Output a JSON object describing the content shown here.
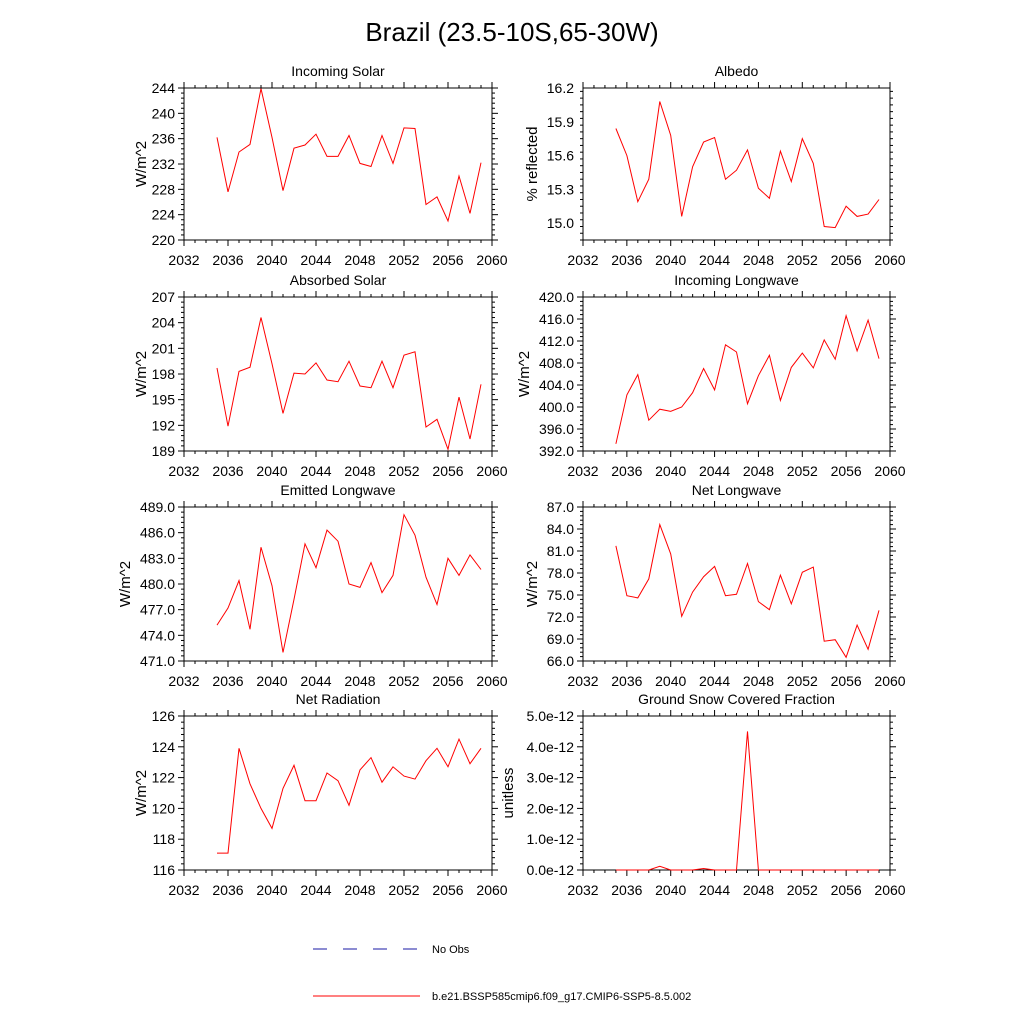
{
  "figure_title": "Brazil (23.5-10S,65-30W)",
  "legend": {
    "no_obs_label": "No Obs",
    "model_label": "b.e21.BSSP585cmip6.f09_g17.CMIP6-SSP5-8.5.002"
  },
  "colors": {
    "model": "#ff0000",
    "obs": "#1a1aa6",
    "axis": "#000000"
  },
  "chart_data": [
    {
      "type": "line",
      "title": "Incoming Solar",
      "ylabel": "W/m^2",
      "xlim": [
        2032,
        2060
      ],
      "ylim": [
        220,
        244
      ],
      "xticks": [
        "2032",
        "2036",
        "2040",
        "2044",
        "2048",
        "2052",
        "2056",
        "2060"
      ],
      "yticks": [
        "220",
        "224",
        "228",
        "232",
        "236",
        "240",
        "244"
      ],
      "series": [
        {
          "x": [
            2035,
            2036,
            2037,
            2038,
            2039,
            2040,
            2041,
            2042,
            2043,
            2044,
            2045,
            2046,
            2047,
            2048,
            2049,
            2050,
            2051,
            2052,
            2053,
            2054,
            2055,
            2056,
            2057,
            2058,
            2059
          ],
          "y": [
            236.2,
            227.6,
            233.9,
            235.1,
            243.9,
            236.2,
            227.8,
            234.5,
            235.0,
            236.7,
            233.2,
            233.2,
            236.5,
            232.1,
            231.6,
            236.5,
            232.1,
            237.7,
            237.6,
            225.6,
            226.8,
            223.0,
            230.1,
            224.2,
            232.2
          ]
        }
      ]
    },
    {
      "type": "line",
      "title": "Albedo",
      "ylabel": "% reflected",
      "xlim": [
        2032,
        2060
      ],
      "ylim": [
        14.85,
        16.2
      ],
      "xticks": [
        "2032",
        "2036",
        "2040",
        "2044",
        "2048",
        "2052",
        "2056",
        "2060"
      ],
      "yticks": [
        "15.0",
        "15.3",
        "15.6",
        "15.9",
        "16.2"
      ],
      "series": [
        {
          "x": [
            2035,
            2036,
            2037,
            2038,
            2039,
            2040,
            2041,
            2042,
            2043,
            2044,
            2045,
            2046,
            2047,
            2048,
            2049,
            2050,
            2051,
            2052,
            2053,
            2054,
            2055,
            2056,
            2057,
            2058,
            2059
          ],
          "y": [
            15.84,
            15.6,
            15.19,
            15.39,
            16.08,
            15.78,
            15.06,
            15.5,
            15.72,
            15.76,
            15.39,
            15.47,
            15.65,
            15.31,
            15.22,
            15.64,
            15.37,
            15.75,
            15.53,
            14.97,
            14.96,
            15.15,
            15.06,
            15.08,
            15.21
          ]
        }
      ]
    },
    {
      "type": "line",
      "title": "Absorbed Solar",
      "ylabel": "W/m^2",
      "xlim": [
        2032,
        2060
      ],
      "ylim": [
        189,
        207
      ],
      "xticks": [
        "2032",
        "2036",
        "2040",
        "2044",
        "2048",
        "2052",
        "2056",
        "2060"
      ],
      "yticks": [
        "189",
        "192",
        "195",
        "198",
        "201",
        "204",
        "207"
      ],
      "series": [
        {
          "x": [
            2035,
            2036,
            2037,
            2038,
            2039,
            2040,
            2041,
            2042,
            2043,
            2044,
            2045,
            2046,
            2047,
            2048,
            2049,
            2050,
            2051,
            2052,
            2053,
            2054,
            2055,
            2056,
            2057,
            2058,
            2059
          ],
          "y": [
            198.7,
            191.9,
            198.3,
            198.8,
            204.6,
            199.2,
            193.4,
            198.1,
            198.0,
            199.3,
            197.3,
            197.1,
            199.5,
            196.6,
            196.4,
            199.5,
            196.4,
            200.2,
            200.6,
            191.8,
            192.7,
            189.2,
            195.3,
            190.4,
            196.8
          ]
        }
      ]
    },
    {
      "type": "line",
      "title": "Incoming Longwave",
      "ylabel": "W/m^2",
      "xlim": [
        2032,
        2060
      ],
      "ylim": [
        392,
        420
      ],
      "xticks": [
        "2032",
        "2036",
        "2040",
        "2044",
        "2048",
        "2052",
        "2056",
        "2060"
      ],
      "yticks": [
        "392.0",
        "396.0",
        "400.0",
        "404.0",
        "408.0",
        "412.0",
        "416.0",
        "420.0"
      ],
      "series": [
        {
          "x": [
            2035,
            2036,
            2037,
            2038,
            2039,
            2040,
            2041,
            2042,
            2043,
            2044,
            2045,
            2046,
            2047,
            2048,
            2049,
            2050,
            2051,
            2052,
            2053,
            2054,
            2055,
            2056,
            2057,
            2058,
            2059
          ],
          "y": [
            393.3,
            402.2,
            405.9,
            397.6,
            399.6,
            399.2,
            400.0,
            402.6,
            407.0,
            403.1,
            411.3,
            410.0,
            400.6,
            405.7,
            409.4,
            401.2,
            407.2,
            409.8,
            407.1,
            412.2,
            408.7,
            416.6,
            410.2,
            415.8,
            408.8
          ]
        }
      ]
    },
    {
      "type": "line",
      "title": "Emitted Longwave",
      "ylabel": "W/m^2",
      "xlim": [
        2032,
        2060
      ],
      "ylim": [
        471,
        489
      ],
      "xticks": [
        "2032",
        "2036",
        "2040",
        "2044",
        "2048",
        "2052",
        "2056",
        "2060"
      ],
      "yticks": [
        "471.0",
        "474.0",
        "477.0",
        "480.0",
        "483.0",
        "486.0",
        "489.0"
      ],
      "series": [
        {
          "x": [
            2035,
            2036,
            2037,
            2038,
            2039,
            2040,
            2041,
            2042,
            2043,
            2044,
            2045,
            2046,
            2047,
            2048,
            2049,
            2050,
            2051,
            2052,
            2053,
            2054,
            2055,
            2056,
            2057,
            2058,
            2059
          ],
          "y": [
            475.2,
            477.2,
            480.4,
            474.7,
            484.3,
            479.8,
            472.0,
            478.2,
            484.7,
            481.9,
            486.3,
            485.0,
            480.0,
            479.6,
            482.5,
            479.0,
            481.0,
            488.1,
            485.7,
            480.8,
            477.6,
            483.0,
            481.0,
            483.4,
            481.7
          ]
        }
      ]
    },
    {
      "type": "line",
      "title": "Net Longwave",
      "ylabel": "W/m^2",
      "xlim": [
        2032,
        2060
      ],
      "ylim": [
        66,
        87
      ],
      "xticks": [
        "2032",
        "2036",
        "2040",
        "2044",
        "2048",
        "2052",
        "2056",
        "2060"
      ],
      "yticks": [
        "66.0",
        "69.0",
        "72.0",
        "75.0",
        "78.0",
        "81.0",
        "84.0",
        "87.0"
      ],
      "series": [
        {
          "x": [
            2035,
            2036,
            2037,
            2038,
            2039,
            2040,
            2041,
            2042,
            2043,
            2044,
            2045,
            2046,
            2047,
            2048,
            2049,
            2050,
            2051,
            2052,
            2053,
            2054,
            2055,
            2056,
            2057,
            2058,
            2059
          ],
          "y": [
            81.7,
            74.9,
            74.6,
            77.2,
            84.6,
            80.6,
            72.1,
            75.4,
            77.5,
            78.9,
            74.9,
            75.1,
            79.3,
            74.1,
            73.0,
            77.7,
            73.8,
            78.1,
            78.8,
            68.7,
            68.9,
            66.5,
            70.9,
            67.6,
            72.9
          ]
        }
      ]
    },
    {
      "type": "line",
      "title": "Net Radiation",
      "ylabel": "W/m^2",
      "xlim": [
        2032,
        2060
      ],
      "ylim": [
        116,
        126
      ],
      "xticks": [
        "2032",
        "2036",
        "2040",
        "2044",
        "2048",
        "2052",
        "2056",
        "2060"
      ],
      "yticks": [
        "116",
        "118",
        "120",
        "122",
        "124",
        "126"
      ],
      "series": [
        {
          "x": [
            2035,
            2036,
            2037,
            2038,
            2039,
            2040,
            2041,
            2042,
            2043,
            2044,
            2045,
            2046,
            2047,
            2048,
            2049,
            2050,
            2051,
            2052,
            2053,
            2054,
            2055,
            2056,
            2057,
            2058,
            2059
          ],
          "y": [
            117.1,
            117.1,
            123.9,
            121.6,
            120.0,
            118.7,
            121.3,
            122.8,
            120.5,
            120.5,
            122.3,
            121.8,
            120.2,
            122.5,
            123.3,
            121.7,
            122.7,
            122.1,
            121.9,
            123.1,
            123.9,
            122.7,
            124.5,
            122.9,
            123.9
          ]
        }
      ]
    },
    {
      "type": "line",
      "title": "Ground Snow Covered Fraction",
      "ylabel": "unitless",
      "xlim": [
        2032,
        2060
      ],
      "ylim": [
        0,
        5e-12
      ],
      "xticks": [
        "2032",
        "2036",
        "2040",
        "2044",
        "2048",
        "2052",
        "2056",
        "2060"
      ],
      "yticks": [
        "0.0e-12",
        "1.0e-12",
        "2.0e-12",
        "3.0e-12",
        "4.0e-12",
        "5.0e-12"
      ],
      "series": [
        {
          "x": [
            2035,
            2036,
            2037,
            2038,
            2039,
            2040,
            2041,
            2042,
            2043,
            2044,
            2045,
            2046,
            2047,
            2048,
            2049,
            2050,
            2051,
            2052,
            2053,
            2054,
            2055,
            2056,
            2057,
            2058,
            2059
          ],
          "y": [
            0,
            0,
            0,
            0,
            1.2e-13,
            0,
            0,
            0,
            5e-14,
            0,
            0,
            0,
            4.5e-12,
            0,
            0,
            0,
            0,
            0,
            0,
            0,
            0,
            0,
            0,
            0,
            0
          ]
        }
      ]
    }
  ]
}
